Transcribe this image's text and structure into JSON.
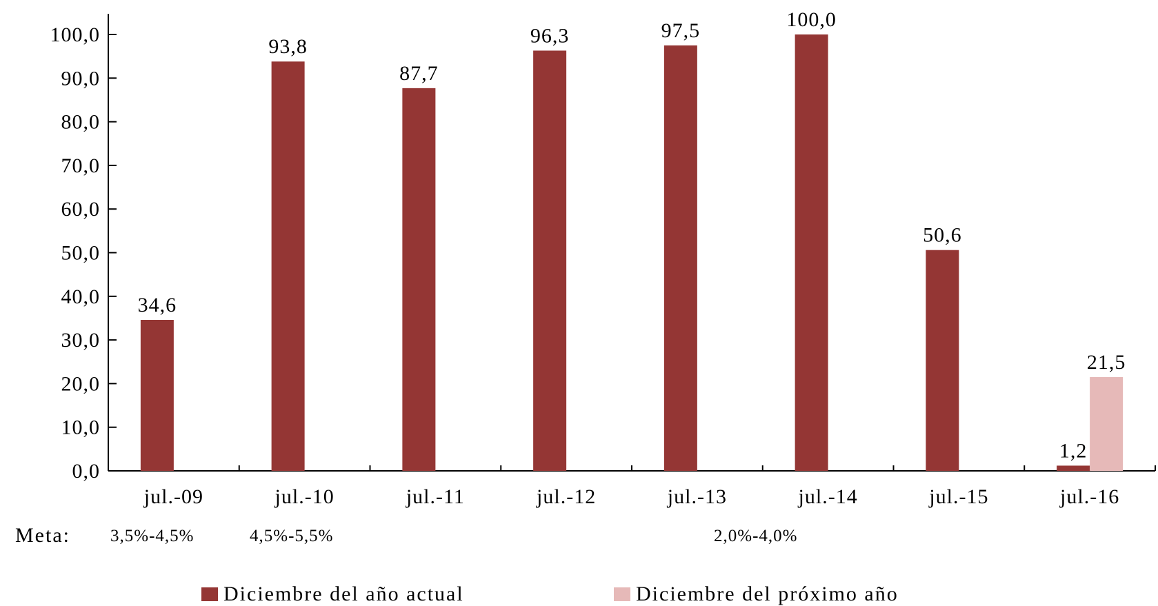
{
  "chart_data": {
    "type": "bar",
    "categories": [
      "jul.-09",
      "jul.-10",
      "jul.-11",
      "jul.-12",
      "jul.-13",
      "jul.-14",
      "jul.-15",
      "jul.-16"
    ],
    "series": [
      {
        "name": "Diciembre del año actual",
        "color": "#943634",
        "values": [
          34.6,
          93.8,
          87.7,
          96.3,
          97.5,
          100.0,
          50.6,
          1.2
        ],
        "labels": [
          "34,6",
          "93,8",
          "87,7",
          "96,3",
          "97,5",
          "100,0",
          "50,6",
          "1,2"
        ]
      },
      {
        "name": "Diciembre del próximo año",
        "color": "#E6B9B8",
        "values": [
          null,
          null,
          null,
          null,
          null,
          null,
          null,
          21.5
        ],
        "labels": [
          null,
          null,
          null,
          null,
          null,
          null,
          null,
          "21,5"
        ]
      }
    ],
    "y_ticks": [
      "0,0",
      "10,0",
      "20,0",
      "30,0",
      "40,0",
      "50,0",
      "60,0",
      "70,0",
      "80,0",
      "90,0",
      "100,0"
    ],
    "ylim": [
      0,
      100
    ],
    "grid": false,
    "legend_position": "bottom"
  },
  "meta": {
    "title": "Meta:",
    "items": [
      "3,5%-4,5%",
      "4,5%-5,5%",
      "2,0%-4,0%"
    ]
  }
}
